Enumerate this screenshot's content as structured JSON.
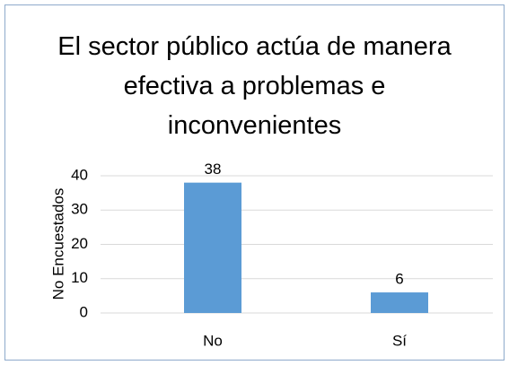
{
  "chart_data": {
    "type": "bar",
    "title": "El sector público actúa de manera efectiva a problemas e inconvenientes",
    "y_label": "No Encuestados",
    "categories": [
      "No",
      "Sí"
    ],
    "values": [
      38,
      6
    ],
    "color": "#5b9bd5",
    "ylim": [
      0,
      40
    ],
    "yticks": [
      0,
      10,
      20,
      30,
      40
    ],
    "grid": true,
    "data_labels": true
  }
}
